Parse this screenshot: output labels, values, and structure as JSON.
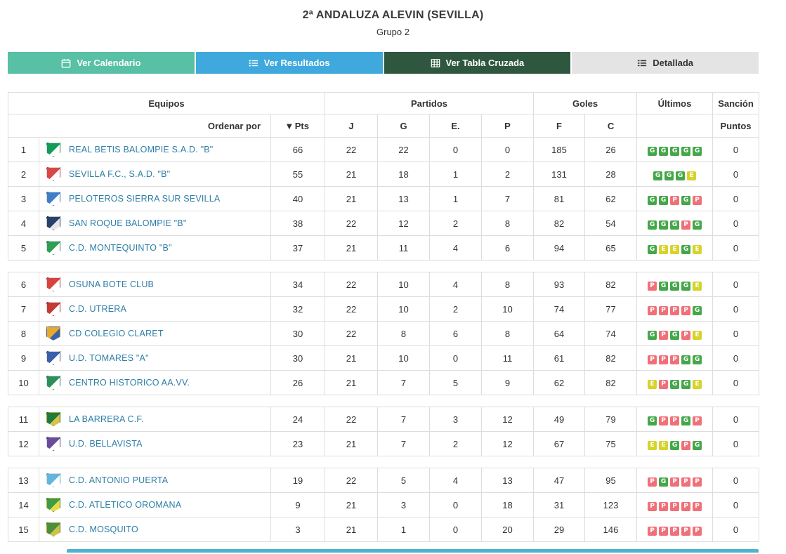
{
  "header": {
    "title": "2ª ANDALUZA ALEVIN (SEVILLA)",
    "subtitle": "Grupo 2"
  },
  "tabs": [
    {
      "label": "Ver Calendario",
      "icon": "calendar-icon",
      "color": "#57c0a5",
      "text_color": "#ffffff"
    },
    {
      "label": "Ver Resultados",
      "icon": "list-icon",
      "color": "#3fa9dd",
      "text_color": "#ffffff"
    },
    {
      "label": "Ver Tabla Cruzada",
      "icon": "table-icon",
      "color": "#2f5740",
      "text_color": "#ffffff"
    },
    {
      "label": "Detallada",
      "icon": "details-icon",
      "color": "#e4e4e4",
      "text_color": "#333333"
    }
  ],
  "table": {
    "group_headers": {
      "equipos": "Equipos",
      "partidos": "Partidos",
      "goles": "Goles",
      "ultimos": "Últimos",
      "sancion": "Sanción"
    },
    "sub_headers": {
      "ordenar": "Ordenar por",
      "pts": "Pts",
      "j": "J",
      "g": "G",
      "e": "E.",
      "p": "P",
      "f": "F",
      "c": "C",
      "puntos": "Puntos"
    },
    "result_colors": {
      "G": "#45a749",
      "E": "#d6d32a",
      "P": "#f0707a"
    },
    "gaps_after": [
      "5",
      "10",
      "12"
    ],
    "rows": [
      {
        "pos": "1",
        "team": "REAL BETIS BALOMPIE S.A.D. \"B\"",
        "pts": "66",
        "j": "22",
        "g": "22",
        "e": "0",
        "p": "0",
        "f": "185",
        "c": "26",
        "last5": [
          "G",
          "G",
          "G",
          "G",
          "G"
        ],
        "sancion": "0",
        "crest": {
          "c1": "#0f9d58",
          "c2": "#ffffff"
        }
      },
      {
        "pos": "2",
        "team": "SEVILLA F.C., S.A.D. \"B\"",
        "pts": "55",
        "j": "21",
        "g": "18",
        "e": "1",
        "p": "2",
        "f": "131",
        "c": "28",
        "last5": [
          "G",
          "G",
          "G",
          "E"
        ],
        "sancion": "0",
        "crest": {
          "c1": "#d84848",
          "c2": "#ffffff"
        }
      },
      {
        "pos": "3",
        "team": "PELOTEROS SIERRA SUR SEVILLA",
        "pts": "40",
        "j": "21",
        "g": "13",
        "e": "1",
        "p": "7",
        "f": "81",
        "c": "62",
        "last5": [
          "G",
          "G",
          "P",
          "G",
          "P"
        ],
        "sancion": "0",
        "crest": {
          "c1": "#3f7fc9",
          "c2": "#ffffff"
        }
      },
      {
        "pos": "4",
        "team": "SAN ROQUE BALOMPIE \"B\"",
        "pts": "38",
        "j": "22",
        "g": "12",
        "e": "2",
        "p": "8",
        "f": "82",
        "c": "54",
        "last5": [
          "G",
          "G",
          "G",
          "P",
          "G"
        ],
        "sancion": "0",
        "crest": {
          "c1": "#27406e",
          "c2": "#e8e8e8"
        }
      },
      {
        "pos": "5",
        "team": "C.D. MONTEQUINTO \"B\"",
        "pts": "37",
        "j": "21",
        "g": "11",
        "e": "4",
        "p": "6",
        "f": "94",
        "c": "65",
        "last5": [
          "G",
          "E",
          "E",
          "G",
          "E"
        ],
        "sancion": "0",
        "crest": {
          "c1": "#2f9e52",
          "c2": "#ffffff"
        }
      },
      {
        "pos": "6",
        "team": "OSUNA BOTE CLUB",
        "pts": "34",
        "j": "22",
        "g": "10",
        "e": "4",
        "p": "8",
        "f": "93",
        "c": "82",
        "last5": [
          "P",
          "G",
          "G",
          "G",
          "E"
        ],
        "sancion": "0",
        "crest": {
          "c1": "#d64440",
          "c2": "#ffffff"
        }
      },
      {
        "pos": "7",
        "team": "C.D. UTRERA",
        "pts": "32",
        "j": "22",
        "g": "10",
        "e": "2",
        "p": "10",
        "f": "74",
        "c": "77",
        "last5": [
          "P",
          "P",
          "P",
          "P",
          "G"
        ],
        "sancion": "0",
        "crest": {
          "c1": "#c53a33",
          "c2": "#ffffff"
        }
      },
      {
        "pos": "8",
        "team": "CD COLEGIO CLARET",
        "pts": "30",
        "j": "22",
        "g": "8",
        "e": "6",
        "p": "8",
        "f": "64",
        "c": "74",
        "last5": [
          "G",
          "P",
          "G",
          "P",
          "E"
        ],
        "sancion": "0",
        "crest": {
          "c1": "#e9a92c",
          "c2": "#3b62a8"
        }
      },
      {
        "pos": "9",
        "team": "U.D. TOMARES \"A\"",
        "pts": "30",
        "j": "21",
        "g": "10",
        "e": "0",
        "p": "11",
        "f": "61",
        "c": "82",
        "last5": [
          "P",
          "P",
          "P",
          "G",
          "G"
        ],
        "sancion": "0",
        "crest": {
          "c1": "#3a60a8",
          "c2": "#ffffff"
        }
      },
      {
        "pos": "10",
        "team": "CENTRO HISTORICO AA.VV.",
        "pts": "26",
        "j": "21",
        "g": "7",
        "e": "5",
        "p": "9",
        "f": "62",
        "c": "82",
        "last5": [
          "E",
          "P",
          "G",
          "G",
          "E"
        ],
        "sancion": "0",
        "crest": {
          "c1": "#2f8f5b",
          "c2": "#ffffff"
        }
      },
      {
        "pos": "11",
        "team": "LA BARRERA C.F.",
        "pts": "24",
        "j": "22",
        "g": "7",
        "e": "3",
        "p": "12",
        "f": "49",
        "c": "79",
        "last5": [
          "G",
          "P",
          "P",
          "G",
          "P"
        ],
        "sancion": "0",
        "crest": {
          "c1": "#1f7a3d",
          "c2": "#d8c44a"
        }
      },
      {
        "pos": "12",
        "team": "U.D. BELLAVISTA",
        "pts": "23",
        "j": "21",
        "g": "7",
        "e": "2",
        "p": "12",
        "f": "67",
        "c": "75",
        "last5": [
          "E",
          "E",
          "G",
          "P",
          "G"
        ],
        "sancion": "0",
        "crest": {
          "c1": "#6a4b9c",
          "c2": "#ffffff"
        }
      },
      {
        "pos": "13",
        "team": "C.D. ANTONIO PUERTA",
        "pts": "19",
        "j": "22",
        "g": "5",
        "e": "4",
        "p": "13",
        "f": "47",
        "c": "95",
        "last5": [
          "P",
          "G",
          "P",
          "P",
          "P"
        ],
        "sancion": "0",
        "crest": {
          "c1": "#62b5dc",
          "c2": "#ffffff"
        }
      },
      {
        "pos": "14",
        "team": "C.D. ATLETICO OROMANA",
        "pts": "9",
        "j": "21",
        "g": "3",
        "e": "0",
        "p": "18",
        "f": "31",
        "c": "123",
        "last5": [
          "P",
          "P",
          "P",
          "P",
          "P"
        ],
        "sancion": "0",
        "crest": {
          "c1": "#3d9c44",
          "c2": "#e3dc4a"
        }
      },
      {
        "pos": "15",
        "team": "C.D. MOSQUITO",
        "pts": "3",
        "j": "21",
        "g": "1",
        "e": "0",
        "p": "20",
        "f": "29",
        "c": "146",
        "last5": [
          "P",
          "P",
          "P",
          "P",
          "P"
        ],
        "sancion": "0",
        "crest": {
          "c1": "#4a8f3c",
          "c2": "#cfc24a"
        }
      }
    ]
  },
  "footer_strip": {
    "color": "#4db3ce"
  }
}
